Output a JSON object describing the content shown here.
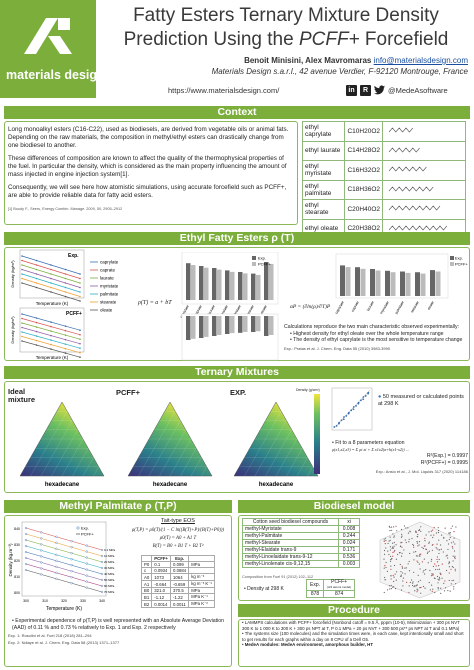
{
  "header": {
    "logo_text": "materials design",
    "title_line1": "Fatty Esters Ternary Mixture Density",
    "title_line2_a": "Prediction Using the ",
    "title_line2_b": "PCFF+",
    "title_line2_c": " Forcefield",
    "authors": "Benoit Minisini, Alex Mavromaras",
    "email": "info@materialsdesign.com",
    "affiliation": "Materials Design s.a.r.l., 42 avenue Verdier, F-92120 Montrouge, France",
    "website": "https://www.materialsdesign.com/",
    "social_handle": "@MedeAsoftware"
  },
  "sections": {
    "context": "Context",
    "ethyl": "Ethyl Fatty Esters ρ (T)",
    "ternary": "Ternary Mixtures",
    "methyl": "Methyl Palmitate ρ (T,P)",
    "biodiesel": "Biodiesel model",
    "procedure": "Procedure"
  },
  "context": {
    "p1": "Long monoalkyl esters (C16-C22), used as biodiesels, are derived from vegetable oils or animal fats. Depending on the raw materials, the composition in methyl/ethyl esters can drastically change from one biodiesel to another.",
    "p2": "These differences of composition are known to affect the quality of the thermophysical properties of the fuel. In particular the density, which is considered as the main property influencing the amount of mass injected in engine injection system[1].",
    "p3": "Consequently, we will see here how atomistic simulations, using accurate forcefield such as PCFF+, are able to provide reliable data for fatty acid esters.",
    "ref": "[1] Boudy F., Seers, Energy Combin. Manage. 2009, 50, 2905–2912",
    "esters": [
      {
        "name": "ethyl caprylate",
        "formula": "C10H20O2"
      },
      {
        "name": "ethyl laurate",
        "formula": "C14H28O2"
      },
      {
        "name": "ethyl myristate",
        "formula": "C16H32O2"
      },
      {
        "name": "ethyl palmitate",
        "formula": "C18H36O2"
      },
      {
        "name": "ethyl stearate",
        "formula": "C20H40O2"
      },
      {
        "name": "ethyl oleate",
        "formula": "C20H38O2"
      }
    ]
  },
  "ethyl": {
    "exp_label": "Exp.",
    "pcff_label": "PCFF+",
    "ylabel": "Density (kg/m³)",
    "xlabel": "Temperature (K)",
    "legend": [
      "caprylate",
      "caprate",
      "laurate",
      "myristate",
      "palmitate",
      "stearate",
      "oleate"
    ],
    "eq1": "ρ(T) = a + bT",
    "eq2": "αP = (∂ln(ρ)/∂T)P",
    "bar_legend": [
      "Exp.",
      "PCFF+"
    ],
    "bar_cats": [
      "caprylate",
      "caprate",
      "laurate",
      "myristate",
      "palmitate",
      "stearate",
      "oleate"
    ],
    "obs_title": "Calculations reproduce the two main characteristic observed experimentally:",
    "obs1": "Highest density for ethyl oleate over the whole temperature range",
    "obs2": "The density of ethyl caprylate is the most sensitive to temperature change",
    "ref": "Exp.: Pratas et al. J. Chem. Eng. Data 55 (2010) 3983-3990"
  },
  "ternary": {
    "ideal": "Ideal mixture",
    "pcff": "PCFF+",
    "exp": "EXP.",
    "axis_left": "1-butanol",
    "axis_right": "ethyl stearate",
    "axis_bottom": "hexadecane",
    "colorbar_label": "Density (g/cm³)",
    "points_note": "50 measured or calculated points at 298 K",
    "fit_title": "Fit to a 8 parameters equation",
    "fit_eq": "ρ(x1,x2,x3) = Σ ρi xi + Σ x1x2(a+b(x1-x2)) ...",
    "r2_exp": "R²(Exp.) = 0.9997",
    "r2_pcff": "R²(PCFF+) = 0.9995",
    "ref": "Exp.: Ansio et al., J. Mol. Liquids 317 (2020) 114186"
  },
  "methyl": {
    "ylabel": "Density (kg.m⁻³)",
    "xlabel": "Temperature (K)",
    "legend_exp": "Exp.",
    "legend_pcff": "PCFF+",
    "pressure_labels": [
      "0.1 MPa",
      "10 MPa",
      "20 MPa",
      "30 MPa",
      "40 MPa",
      "50 MPa",
      "60 MPa",
      "70 MPa"
    ],
    "eos_title": "Tait-type EOS",
    "bullet1": "Experimental dependence of ρ(T,P) is well represented with an Absolute Average Deviation (AAD) of 0.11 % and 0.73 % relatively to Exp. 1 and Exp. 2 respectively",
    "ref1": "Exp. 1: Rosolini et al. Fuel 218 (2018) 281–294",
    "ref2": "Exp. 2: Ndiaye et al. J. Chem. Eng. Data 58 (2013) 1371–1377",
    "param_headers": [
      "",
      "PCFF+",
      "Exp."
    ],
    "params": [
      [
        "P0",
        "0.1",
        "0.099",
        "MPa"
      ],
      [
        "c",
        "0.0934",
        "0.0884",
        ""
      ],
      [
        "A0",
        "1073",
        "1064",
        "kg m⁻³"
      ],
      [
        "A1",
        "-0.664",
        "-0.659",
        "kg m⁻³ K⁻¹"
      ],
      [
        "B0",
        "321.0",
        "370.5",
        "MPa"
      ],
      [
        "B1",
        "-1.12",
        "-1.22",
        "MPa K⁻¹"
      ],
      [
        "B2",
        "0.0014",
        "0.0011",
        "MPa K⁻²"
      ]
    ]
  },
  "biodiesel": {
    "table_headers": [
      "Cotton seed biodiesel compounds",
      "xi"
    ],
    "rows": [
      [
        "methyl-Myristate",
        "0.008"
      ],
      [
        "methyl-Palmitate",
        "0.244"
      ],
      [
        "methyl-Stearate",
        "0.024"
      ],
      [
        "methyl-Elaidate trans-9",
        "0.171"
      ],
      [
        "methyl-Linoelaidate trans-9-12",
        "0.536"
      ],
      [
        "methyl-Linolenate cis-9,12,15",
        "0.003"
      ]
    ],
    "source": "Composition from Fuel 91 (2012) 102–112",
    "density_note": "Density at 298 K",
    "exp_col": "Exp.",
    "pcff_col": "PCFF+",
    "pcff_sub": "(3/4 atoms model)",
    "exp_val": "878",
    "pcff_val": "874"
  },
  "procedure": {
    "b1": "LAMMPS calculations with PCFF+ forcefield (Nonbond cutoff = 9.5 Å, pppm (10-5), Minimization + 300 ps NVT 300 K to 1 000 K to 300 K + 300 ps NPT at T, P 0.1 MPa + 20 ps NVT + 300 500 ps** ps NPT at T and 0.1 MPa)",
    "b2": "The systems size (100 molecules) and the simulation times were, in each case, kept intentionally small and short to get results for each graphs within a day on 8 CPU of a Dell G5.",
    "b3": "MedeA modules: MedeA environment, amorphous builder, HT"
  },
  "colors": {
    "accent": "#7cae3c",
    "exp_series": "#3a6fb0",
    "pcff_series": "#888888"
  }
}
